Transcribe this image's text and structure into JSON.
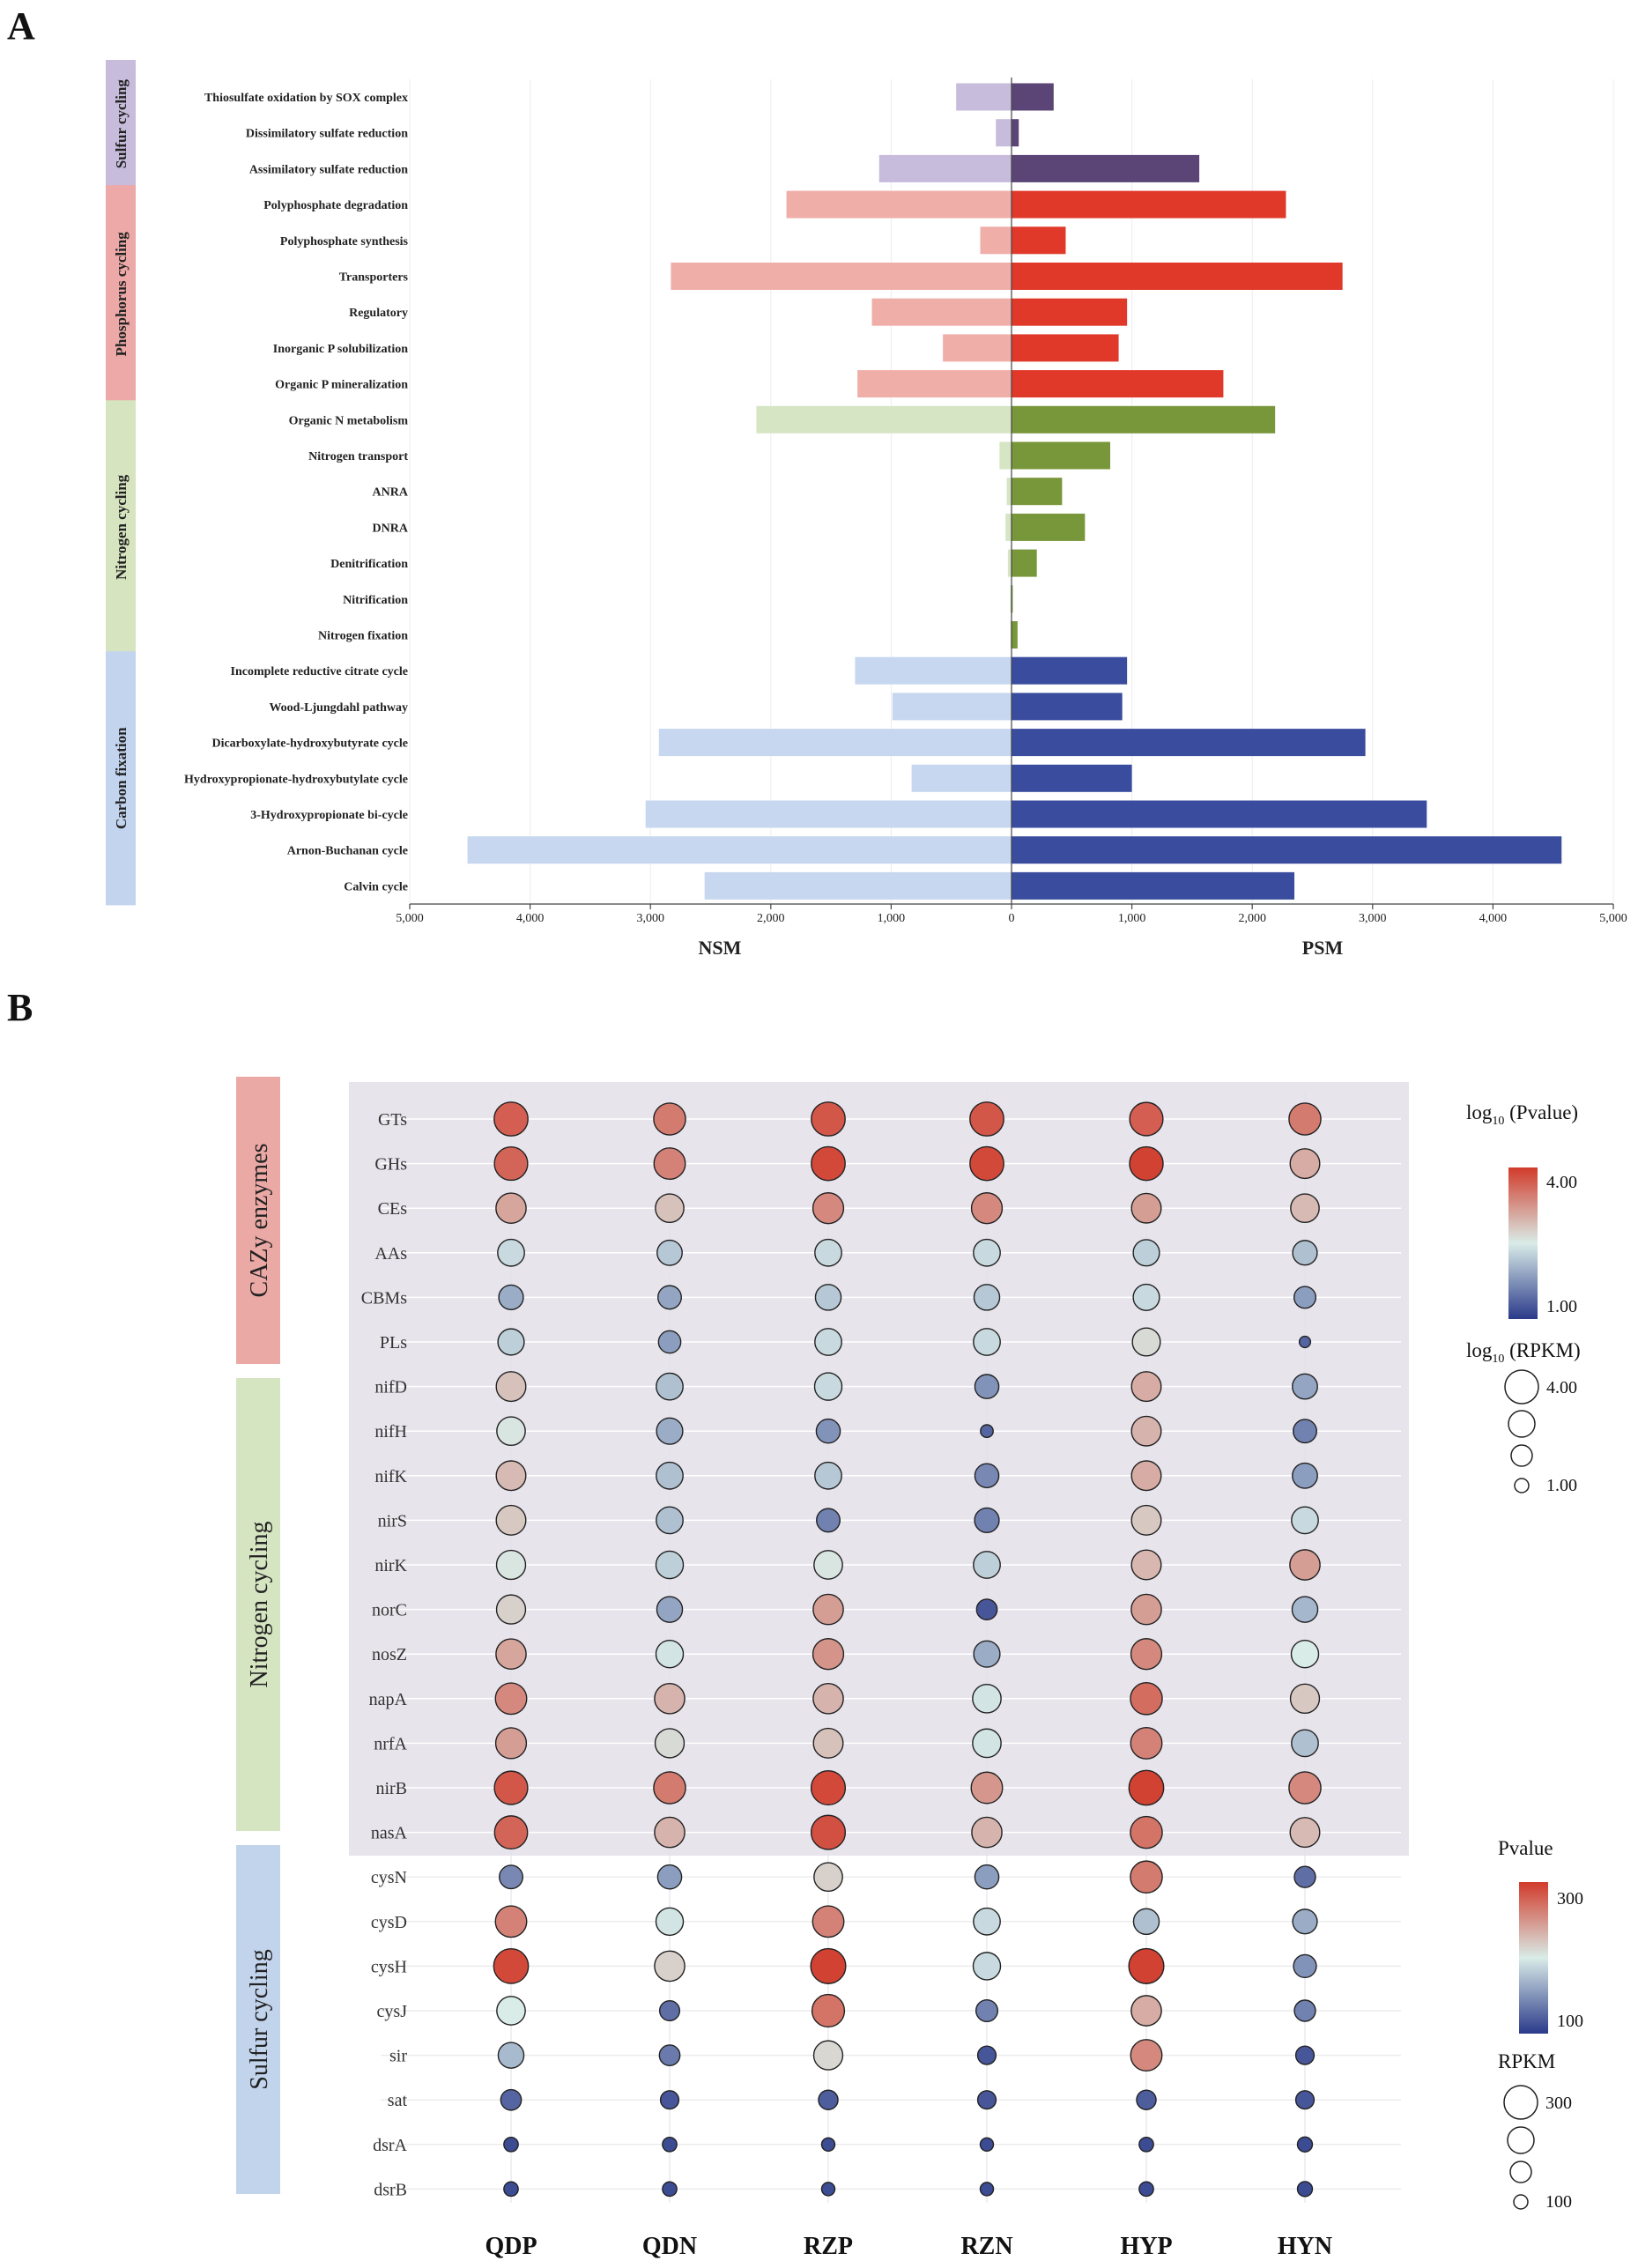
{
  "figure": {
    "panel_a_letter": "A",
    "panel_b_letter": "B"
  },
  "colors": {
    "sulfur_pos": "#5b4577",
    "sulfur_neg": "#c7bcdb",
    "phosphorus_pos": "#e0392a",
    "phosphorus_neg": "#f0aea8",
    "nitrogen_pos": "#78963a",
    "nitrogen_neg": "#d6e5c4",
    "carbon_pos": "#394c9e",
    "carbon_neg": "#c6d7ef",
    "sulfur_box": "#c7bcdb",
    "phosphorus_box": "#eca9a7",
    "nitrogen_box": "#d6e5c0",
    "carbon_box": "#c2d4ee",
    "cazy_box": "#eba9a6",
    "nitrogen_b_box": "#d5e4c1",
    "sulfur_b_box": "#c2d4ec",
    "panel_b_shade": "#e7e4ec",
    "scale_low": "#2b3a8a",
    "scale_mid": "#d9ece8",
    "scale_high": "#d13b2b"
  },
  "chart_data": [
    {
      "type": "bar",
      "orientation": "horizontal-diverging",
      "title": "",
      "xlabel_left": "NSM",
      "xlabel_right": "PSM",
      "xlim": [
        -5000,
        5000
      ],
      "ticks": [
        -5000,
        -4000,
        -3000,
        -2000,
        -1000,
        0,
        1000,
        2000,
        3000,
        4000,
        5000
      ],
      "tick_labels": [
        "5,000",
        "4,000",
        "3,000",
        "2,000",
        "1,000",
        "0",
        "1,000",
        "2,000",
        "3,000",
        "4,000",
        "5,000"
      ],
      "groups": [
        {
          "name": "Sulfur cycling",
          "key": "sulfur",
          "start": 0,
          "end": 2
        },
        {
          "name": "Phosphorus cycling",
          "key": "phosphorus",
          "start": 3,
          "end": 8
        },
        {
          "name": "Nitrogen cycling",
          "key": "nitrogen",
          "start": 9,
          "end": 15
        },
        {
          "name": "Carbon fixation",
          "key": "carbon",
          "start": 16,
          "end": 22
        }
      ],
      "categories": [
        "Thiosulfate oxidation by SOX complex",
        "Dissimilatory sulfate reduction",
        "Assimilatory sulfate reduction",
        "Polyphosphate degradation",
        "Polyphosphate synthesis",
        "Transporters",
        "Regulatory",
        "Inorganic P solubilization",
        "Organic P mineralization",
        "Organic N metabolism",
        "Nitrogen transport",
        "ANRA",
        "DNRA",
        "Denitrification",
        "Nitrification",
        "Nitrogen fixation",
        "Incomplete reductive citrate cycle",
        "Wood-Ljungdahl pathway",
        "Dicarboxylate-hydroxybutyrate cycle",
        "Hydroxypropionate-hydroxybutylate cycle",
        "3-Hydroxypropionate bi-cycle",
        "Arnon-Buchanan cycle",
        "Calvin cycle"
      ],
      "series": [
        {
          "name": "NSM",
          "values": [
            460,
            130,
            1100,
            1870,
            260,
            2830,
            1160,
            570,
            1280,
            2120,
            100,
            40,
            50,
            30,
            10,
            10,
            1300,
            990,
            2930,
            830,
            3040,
            4520,
            2550
          ]
        },
        {
          "name": "PSM",
          "values": [
            350,
            60,
            1560,
            2280,
            450,
            2750,
            960,
            890,
            1760,
            2190,
            820,
            420,
            610,
            210,
            10,
            50,
            960,
            920,
            2940,
            1000,
            3450,
            4570,
            2350
          ]
        }
      ]
    },
    {
      "type": "scatter",
      "subtype": "bubble-matrix",
      "columns": [
        "QDP",
        "QDN",
        "RZP",
        "RZN",
        "HYP",
        "HYN"
      ],
      "groups": [
        {
          "name": "CAZy enzymes",
          "start": 0,
          "end": 5
        },
        {
          "name": "Nitrogen cycling",
          "start": 6,
          "end": 16
        },
        {
          "name": "Sulfur cycling",
          "start": 17,
          "end": 24
        }
      ],
      "rows": [
        "GTs",
        "GHs",
        "CEs",
        "AAs",
        "CBMs",
        "PLs",
        "nifD",
        "nifH",
        "nifK",
        "nirS",
        "nirK",
        "norC",
        "nosZ",
        "napA",
        "nrfA",
        "nirB",
        "nasA",
        "cysN",
        "cysD",
        "cysH",
        "cysJ",
        "sir",
        "sat",
        "dsrA",
        "dsrB"
      ],
      "color_values": [
        [
          0.9,
          0.82,
          0.92,
          0.92,
          0.9,
          0.82
        ],
        [
          0.88,
          0.8,
          0.96,
          0.96,
          0.98,
          0.68
        ],
        [
          0.7,
          0.62,
          0.78,
          0.78,
          0.72,
          0.64
        ],
        [
          0.45,
          0.4,
          0.45,
          0.45,
          0.42,
          0.38
        ],
        [
          0.32,
          0.3,
          0.4,
          0.4,
          0.45,
          0.28
        ],
        [
          0.42,
          0.28,
          0.45,
          0.45,
          0.55,
          0.12
        ],
        [
          0.62,
          0.38,
          0.45,
          0.25,
          0.68,
          0.3
        ],
        [
          0.52,
          0.32,
          0.25,
          0.12,
          0.66,
          0.2
        ],
        [
          0.64,
          0.38,
          0.4,
          0.22,
          0.68,
          0.28
        ],
        [
          0.6,
          0.38,
          0.2,
          0.2,
          0.6,
          0.45
        ],
        [
          0.52,
          0.42,
          0.52,
          0.42,
          0.65,
          0.72
        ],
        [
          0.58,
          0.3,
          0.72,
          0.08,
          0.72,
          0.35
        ],
        [
          0.7,
          0.48,
          0.75,
          0.32,
          0.78,
          0.5
        ],
        [
          0.78,
          0.66,
          0.66,
          0.48,
          0.86,
          0.6
        ],
        [
          0.72,
          0.55,
          0.62,
          0.48,
          0.8,
          0.38
        ],
        [
          0.92,
          0.82,
          0.96,
          0.74,
          0.98,
          0.78
        ],
        [
          0.88,
          0.66,
          0.94,
          0.66,
          0.84,
          0.64
        ],
        [
          0.22,
          0.28,
          0.58,
          0.28,
          0.82,
          0.15
        ],
        [
          0.8,
          0.48,
          0.8,
          0.45,
          0.38,
          0.32
        ],
        [
          0.96,
          0.58,
          0.98,
          0.45,
          0.98,
          0.25
        ],
        [
          0.5,
          0.15,
          0.84,
          0.2,
          0.68,
          0.2
        ],
        [
          0.36,
          0.18,
          0.56,
          0.08,
          0.78,
          0.08
        ],
        [
          0.12,
          0.08,
          0.1,
          0.08,
          0.1,
          0.08
        ],
        [
          0.05,
          0.05,
          0.05,
          0.05,
          0.05,
          0.05
        ],
        [
          0.05,
          0.05,
          0.05,
          0.05,
          0.05,
          0.05
        ]
      ],
      "size_values": [
        [
          0.95,
          0.88,
          0.95,
          0.95,
          0.93,
          0.88
        ],
        [
          0.93,
          0.86,
          0.95,
          0.95,
          0.94,
          0.8
        ],
        [
          0.82,
          0.76,
          0.84,
          0.84,
          0.8,
          0.76
        ],
        [
          0.7,
          0.64,
          0.7,
          0.7,
          0.68,
          0.62
        ],
        [
          0.62,
          0.58,
          0.66,
          0.66,
          0.68,
          0.52
        ],
        [
          0.68,
          0.54,
          0.7,
          0.7,
          0.74,
          0.15
        ],
        [
          0.8,
          0.7,
          0.72,
          0.6,
          0.8,
          0.64
        ],
        [
          0.76,
          0.68,
          0.6,
          0.2,
          0.8,
          0.58
        ],
        [
          0.8,
          0.7,
          0.7,
          0.6,
          0.8,
          0.64
        ],
        [
          0.8,
          0.7,
          0.58,
          0.62,
          0.8,
          0.7
        ],
        [
          0.78,
          0.72,
          0.76,
          0.7,
          0.8,
          0.82
        ],
        [
          0.78,
          0.66,
          0.82,
          0.48,
          0.82,
          0.66
        ],
        [
          0.82,
          0.72,
          0.84,
          0.68,
          0.84,
          0.72
        ],
        [
          0.86,
          0.82,
          0.82,
          0.76,
          0.88,
          0.78
        ],
        [
          0.84,
          0.78,
          0.8,
          0.76,
          0.86,
          0.7
        ],
        [
          0.93,
          0.88,
          0.96,
          0.86,
          0.98,
          0.88
        ],
        [
          0.92,
          0.82,
          0.96,
          0.82,
          0.88,
          0.8
        ],
        [
          0.58,
          0.6,
          0.76,
          0.6,
          0.88,
          0.5
        ],
        [
          0.86,
          0.72,
          0.86,
          0.7,
          0.66,
          0.62
        ],
        [
          0.98,
          0.82,
          0.99,
          0.72,
          0.99,
          0.56
        ],
        [
          0.76,
          0.46,
          0.9,
          0.52,
          0.82,
          0.5
        ],
        [
          0.66,
          0.48,
          0.78,
          0.4,
          0.86,
          0.4
        ],
        [
          0.48,
          0.4,
          0.44,
          0.4,
          0.44,
          0.4
        ],
        [
          0.26,
          0.26,
          0.22,
          0.22,
          0.26,
          0.28
        ],
        [
          0.26,
          0.26,
          0.22,
          0.22,
          0.26,
          0.28
        ]
      ],
      "legends": {
        "top_color": {
          "title_prefix": "log",
          "title_sub": "10",
          "title_suffix": " (Pvalue)",
          "high": "4.00",
          "low": "1.00"
        },
        "top_size": {
          "title_prefix": "log",
          "title_sub": "10",
          "title_suffix": " (RPKM)",
          "high": "4.00",
          "low": "1.00"
        },
        "bottom_color": {
          "title": "Pvalue",
          "high": "300",
          "low": "100"
        },
        "bottom_size": {
          "title": "RPKM",
          "high": "300",
          "low": "100"
        }
      }
    }
  ]
}
